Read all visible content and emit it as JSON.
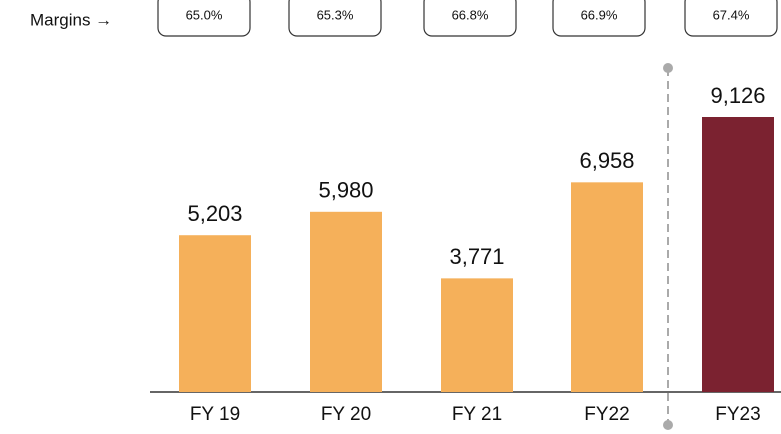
{
  "chart_data": {
    "type": "bar",
    "categories": [
      "FY 19",
      "FY 20",
      "FY 21",
      "FY22",
      "FY23"
    ],
    "values": [
      5203,
      5980,
      3771,
      6958,
      9126
    ],
    "value_labels": [
      "5,203",
      "5,980",
      "3,771",
      "6,958",
      "9,126"
    ],
    "colors": [
      "#f5b05a",
      "#f5b05a",
      "#f5b05a",
      "#f5b05a",
      "#7b2230"
    ],
    "margins_label": "Margins →",
    "margins": [
      "65.0%",
      "65.3%",
      "66.8%",
      "66.9%",
      "67.4%"
    ]
  }
}
